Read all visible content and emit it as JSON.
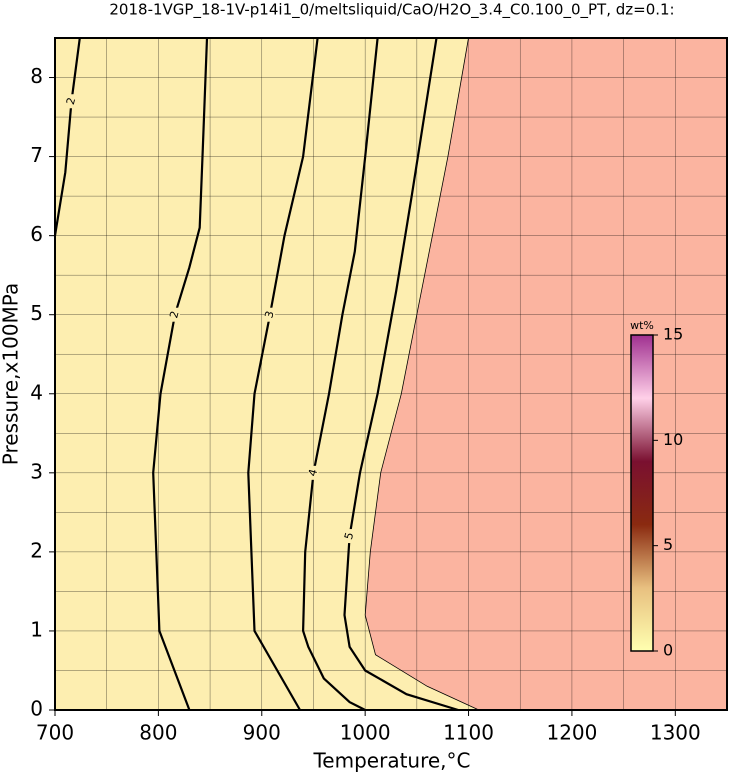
{
  "chart_data": {
    "type": "contour",
    "title": "2018-1VGP_18-1V-p14i1_0/meltsliquid/CaO/H2O_3.4_C0.100_0_PT, dz=0.1:",
    "xlabel": "Temperature,°C",
    "ylabel": "Pressure,x100MPa",
    "xlim": [
      700,
      1350
    ],
    "ylim": [
      0,
      8.5
    ],
    "xticks": [
      700,
      800,
      900,
      1000,
      1100,
      1200,
      1300
    ],
    "yticks": [
      0,
      1,
      2,
      3,
      4,
      5,
      6,
      7,
      8
    ],
    "xgrid": [
      700,
      750,
      800,
      850,
      900,
      950,
      1000,
      1050,
      1100,
      1150,
      1200,
      1250,
      1300,
      1350
    ],
    "ygrid": [
      0,
      0.5,
      1,
      1.5,
      2,
      2.5,
      3,
      3.5,
      4,
      4.5,
      5,
      5.5,
      6,
      6.5,
      7,
      7.5,
      8,
      8.5
    ],
    "grid": true,
    "low_color": "#fdeeb0",
    "high_color": "#fbb4a0",
    "line_color": "#000000",
    "contours": [
      {
        "level": 2,
        "x": [
          700,
          710,
          716,
          724
        ],
        "y": [
          6.0,
          6.8,
          7.7,
          8.5
        ]
      },
      {
        "level": 2,
        "x": [
          830,
          801,
          795,
          802,
          816,
          830,
          840,
          843,
          847
        ],
        "y": [
          0,
          1,
          3,
          4,
          5,
          5.6,
          6.1,
          7.1,
          8.5
        ]
      },
      {
        "level": 3,
        "x": [
          937,
          893,
          887,
          893,
          908,
          922,
          940,
          954
        ],
        "y": [
          0,
          1,
          3,
          4,
          5,
          6,
          7,
          8.5
        ]
      },
      {
        "level": 4,
        "x": [
          1000,
          985,
          960,
          945,
          940,
          942,
          950,
          965,
          978,
          990,
          1000,
          1012
        ],
        "y": [
          0,
          0.1,
          0.4,
          0.8,
          1,
          2,
          3,
          4,
          5,
          5.8,
          7,
          8.5
        ]
      },
      {
        "level": 5,
        "x": [
          1090,
          1040,
          1000,
          985,
          980,
          985,
          995,
          1012,
          1030,
          1045,
          1069
        ],
        "y": [
          0,
          0.2,
          0.5,
          0.8,
          1.2,
          2.2,
          3,
          4,
          5.3,
          6.5,
          8.5
        ]
      }
    ],
    "boundary": {
      "x": [
        1110,
        1060,
        1010,
        1000,
        1005,
        1015,
        1035,
        1050,
        1065,
        1080,
        1100
      ],
      "y": [
        0,
        0.3,
        0.7,
        1.2,
        2,
        3,
        4,
        5,
        6,
        7,
        8.5
      ]
    },
    "colorbar": {
      "label": "wt%",
      "lim": [
        0,
        15
      ],
      "ticks": [
        0,
        5,
        10,
        15
      ],
      "colors": [
        "#ffffb0",
        "#e8c080",
        "#8a2a10",
        "#7a1030",
        "#ffd0e8",
        "#a03090"
      ]
    }
  }
}
